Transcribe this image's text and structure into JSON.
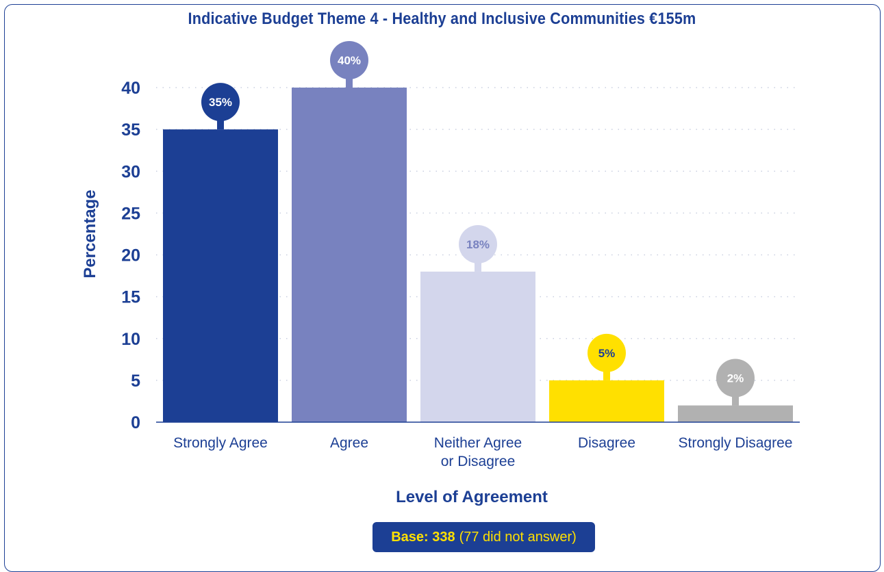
{
  "title": "Indicative Budget Theme 4 - Healthy and Inclusive Communities €155m",
  "base": {
    "label": "Base: 338",
    "note": "(77 did not answer)"
  },
  "colors": {
    "navy": "#1c3f94",
    "grid": "#c9cfe0",
    "yellow": "#ffe000"
  },
  "chart_data": {
    "type": "bar",
    "title": "Indicative Budget Theme 4 - Healthy and Inclusive Communities €155m",
    "xlabel": "Level of Agreement",
    "ylabel": "Percentage",
    "ylim": [
      0,
      40
    ],
    "yticks": [
      "0",
      "5",
      "10",
      "15",
      "20",
      "25",
      "30",
      "35",
      "40"
    ],
    "grid": true,
    "categories": [
      [
        "Strongly Agree"
      ],
      [
        "Agree"
      ],
      [
        "Neither Agree",
        "or Disagree"
      ],
      [
        "Disagree"
      ],
      [
        "Strongly Disagree"
      ]
    ],
    "values": [
      35,
      40,
      18,
      5,
      2
    ],
    "data_labels": [
      "35%",
      "40%",
      "18%",
      "5%",
      "2%"
    ],
    "bar_colors": [
      "#1c3f94",
      "#7882bf",
      "#d3d6ec",
      "#ffe000",
      "#b1b1b1"
    ],
    "label_colors": [
      "#ffffff",
      "#ffffff",
      "#7882bf",
      "#1c3f94",
      "#ffffff"
    ]
  }
}
